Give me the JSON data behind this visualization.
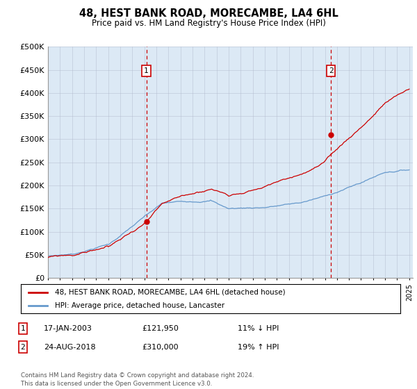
{
  "title": "48, HEST BANK ROAD, MORECAMBE, LA4 6HL",
  "subtitle": "Price paid vs. HM Land Registry's House Price Index (HPI)",
  "background_color": "#ffffff",
  "plot_bg_color": "#dce9f5",
  "ylim": [
    0,
    500000
  ],
  "yticks": [
    0,
    50000,
    100000,
    150000,
    200000,
    250000,
    300000,
    350000,
    400000,
    450000,
    500000
  ],
  "ytick_labels": [
    "£0",
    "£50K",
    "£100K",
    "£150K",
    "£200K",
    "£250K",
    "£300K",
    "£350K",
    "£400K",
    "£450K",
    "£500K"
  ],
  "x_start_year": 1995,
  "x_end_year": 2025,
  "idx1": 98,
  "idx2": 282,
  "val1": 121950,
  "val2": 310000,
  "red_line_color": "#cc0000",
  "blue_line_color": "#6699cc",
  "marker_color": "#cc0000",
  "dashed_line_color": "#cc0000",
  "legend_label_red": "48, HEST BANK ROAD, MORECAMBE, LA4 6HL (detached house)",
  "legend_label_blue": "HPI: Average price, detached house, Lancaster",
  "footnote": "Contains HM Land Registry data © Crown copyright and database right 2024.\nThis data is licensed under the Open Government Licence v3.0.",
  "table_rows": [
    {
      "num": "1",
      "date": "17-JAN-2003",
      "price": "£121,950",
      "hpi": "11% ↓ HPI"
    },
    {
      "num": "2",
      "date": "24-AUG-2018",
      "price": "£310,000",
      "hpi": "19% ↑ HPI"
    }
  ]
}
